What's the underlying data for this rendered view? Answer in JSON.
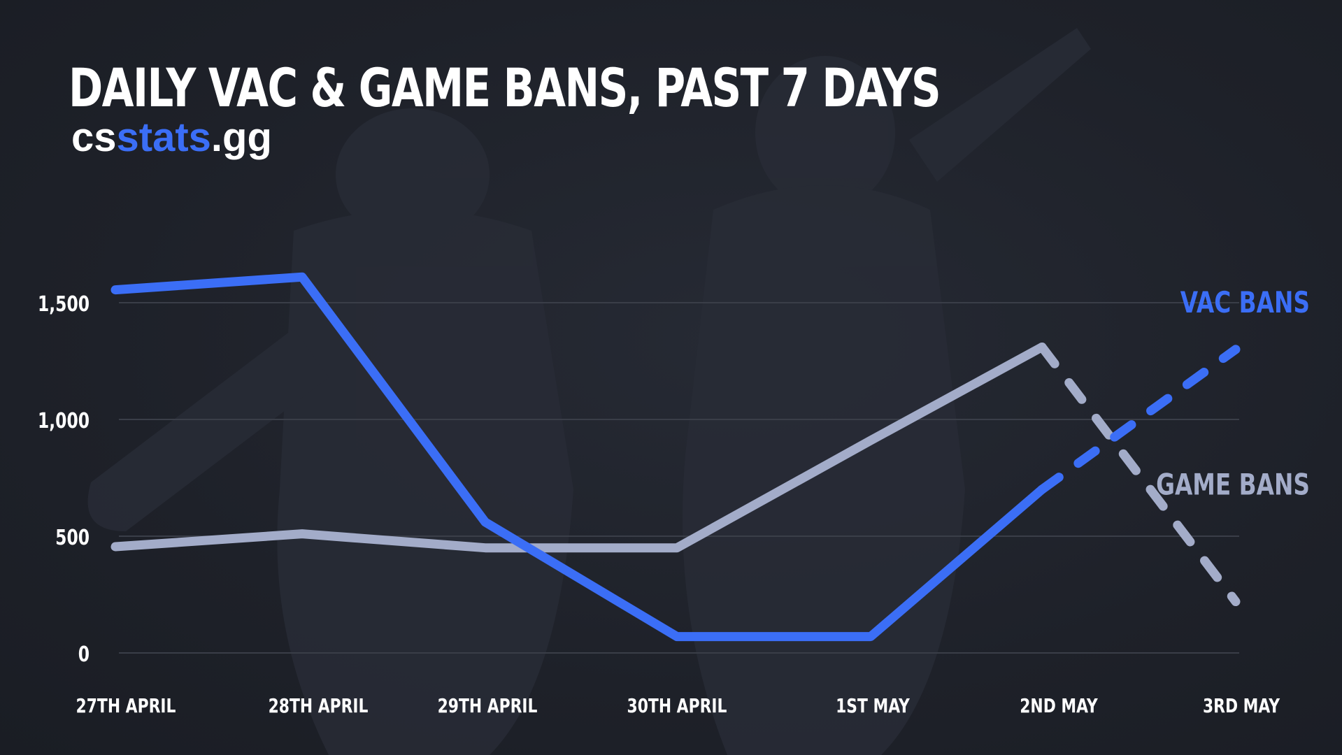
{
  "header": {
    "title": "DAILY VAC & GAME BANS, PAST 7 DAYS",
    "logo_part1": "cs",
    "logo_part2": "stats",
    "logo_part3": ".gg"
  },
  "colors": {
    "background": "#1f222b",
    "vac": "#3b6ef6",
    "game": "#a3acc9",
    "grid": "#3a3e48",
    "text": "#ffffff"
  },
  "chart_data": {
    "type": "line",
    "title": "DAILY VAC & GAME BANS, PAST 7 DAYS",
    "categories": [
      "27TH APRIL",
      "28TH APRIL",
      "29TH APRIL",
      "30TH APRIL",
      "1ST MAY",
      "2ND MAY",
      "3RD MAY"
    ],
    "ylim": [
      0,
      1600
    ],
    "yticks": [
      0,
      500,
      1000,
      1500
    ],
    "ytick_labels": [
      "0",
      "500",
      "1,000",
      "1,500"
    ],
    "grid": true,
    "legend": "right, inline labels",
    "series": [
      {
        "name": "VAC BANS",
        "values": [
          1555,
          1610,
          560,
          70,
          70,
          700,
          1300
        ],
        "dashed_last_segment": true
      },
      {
        "name": "GAME BANS",
        "values": [
          455,
          510,
          450,
          450,
          910,
          1310,
          220
        ],
        "dashed_last_segment": true
      }
    ]
  }
}
